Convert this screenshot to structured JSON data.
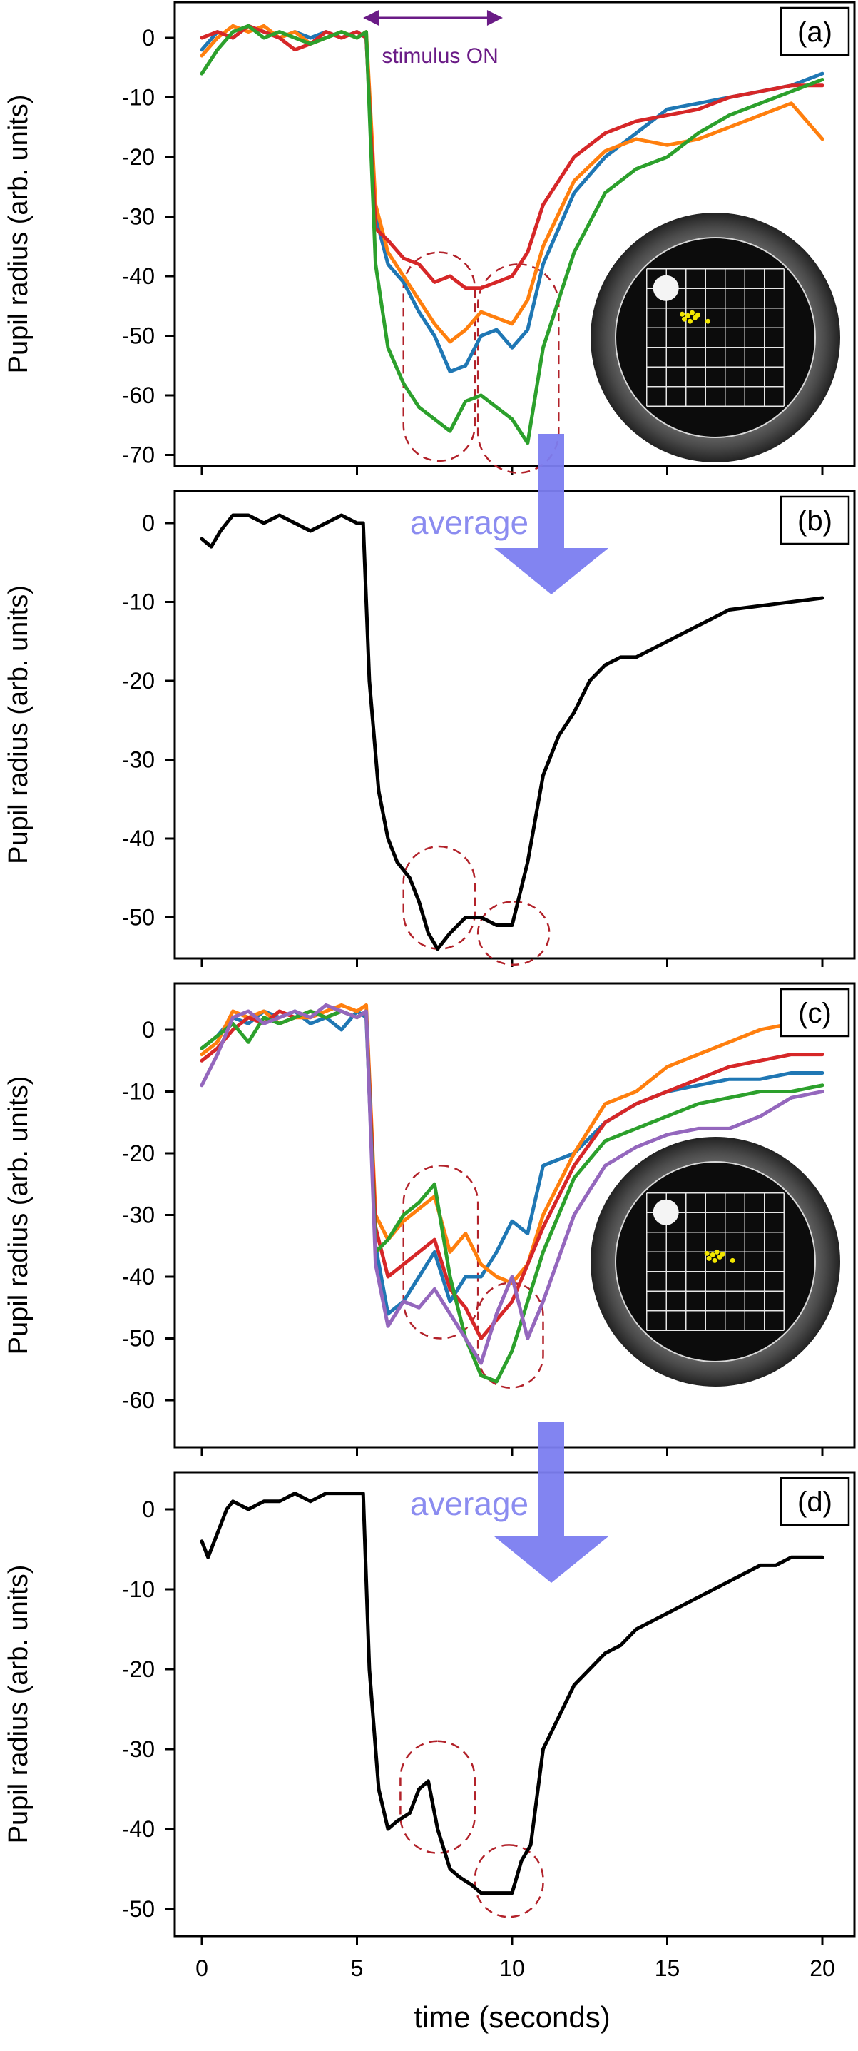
{
  "chart_data": [
    {
      "type": "line",
      "panel_label": "(a)",
      "ylabel": "Pupil radius (arb. units)",
      "xlim": [
        0,
        20
      ],
      "ylim": [
        -72,
        6
      ],
      "yticks": [
        0,
        -10,
        -20,
        -30,
        -40,
        -50,
        -60,
        -70
      ],
      "annotation": "stimulus ON",
      "stimulus_arrow_x": [
        5.2,
        9.7
      ],
      "inset": "fundus-image-with-grid",
      "highlight_groups": [
        {
          "x": [
            6.5,
            8.8
          ],
          "y": [
            -71,
            -36
          ]
        },
        {
          "x": [
            8.9,
            11.5
          ],
          "y": [
            -73,
            -38
          ]
        }
      ],
      "series": [
        {
          "color": "#1f77b4",
          "x": [
            0,
            0.5,
            1,
            1.5,
            2,
            2.5,
            3,
            3.5,
            4,
            4.5,
            5,
            5.3,
            5.6,
            6,
            6.5,
            7,
            7.5,
            8,
            8.5,
            9,
            9.5,
            10,
            10.5,
            11,
            12,
            13,
            14,
            15,
            16,
            17,
            18,
            19,
            20
          ],
          "y": [
            -2,
            1,
            0,
            2,
            1,
            0,
            1,
            0,
            1,
            0,
            1,
            0,
            -30,
            -38,
            -41,
            -46,
            -50,
            -56,
            -55,
            -50,
            -49,
            -52,
            -49,
            -38,
            -26,
            -20,
            -16,
            -12,
            -11,
            -10,
            -9,
            -8,
            -6
          ]
        },
        {
          "color": "#ff7f0e",
          "x": [
            0,
            0.5,
            1,
            1.5,
            2,
            2.5,
            3,
            3.5,
            4,
            4.5,
            5,
            5.3,
            5.6,
            6,
            6.5,
            7,
            7.5,
            8,
            8.5,
            9,
            9.5,
            10,
            10.5,
            11,
            12,
            13,
            14,
            15,
            16,
            17,
            18,
            19,
            20
          ],
          "y": [
            -3,
            0,
            2,
            1,
            2,
            0,
            1,
            -1,
            0,
            1,
            0,
            1,
            -28,
            -36,
            -40,
            -44,
            -48,
            -51,
            -49,
            -46,
            -47,
            -48,
            -44,
            -35,
            -24,
            -19,
            -17,
            -18,
            -17,
            -15,
            -13,
            -11,
            -17
          ]
        },
        {
          "color": "#d62728",
          "x": [
            0,
            0.5,
            1,
            1.5,
            2,
            2.5,
            3,
            3.5,
            4,
            4.5,
            5,
            5.3,
            5.6,
            6,
            6.5,
            7,
            7.5,
            8,
            8.5,
            9,
            9.5,
            10,
            10.5,
            11,
            12,
            13,
            14,
            15,
            16,
            17,
            18,
            19,
            20
          ],
          "y": [
            0,
            1,
            0,
            2,
            1,
            0,
            -2,
            -1,
            1,
            0,
            1,
            0,
            -32,
            -34,
            -37,
            -38,
            -41,
            -40,
            -42,
            -42,
            -41,
            -40,
            -36,
            -28,
            -20,
            -16,
            -14,
            -13,
            -12,
            -10,
            -9,
            -8,
            -8
          ]
        },
        {
          "color": "#2ca02c",
          "x": [
            0,
            0.5,
            1,
            1.5,
            2,
            2.5,
            3,
            3.5,
            4,
            4.5,
            5,
            5.3,
            5.6,
            6,
            6.5,
            7,
            7.5,
            8,
            8.5,
            9,
            9.5,
            10,
            10.5,
            11,
            12,
            13,
            14,
            15,
            16,
            17,
            18,
            19,
            20
          ],
          "y": [
            -6,
            -2,
            1,
            2,
            0,
            1,
            0,
            -1,
            0,
            1,
            0,
            1,
            -38,
            -52,
            -58,
            -62,
            -64,
            -66,
            -61,
            -60,
            -62,
            -64,
            -68,
            -52,
            -36,
            -26,
            -22,
            -20,
            -16,
            -13,
            -11,
            -9,
            -7
          ]
        }
      ]
    },
    {
      "type": "line",
      "panel_label": "(b)",
      "ylabel": "Pupil radius (arb. units)",
      "xlim": [
        0,
        20
      ],
      "ylim": [
        -56,
        4
      ],
      "yticks": [
        0,
        -10,
        -20,
        -30,
        -40,
        -50
      ],
      "annotation": "average",
      "highlight_groups": [
        {
          "x": [
            6.5,
            8.8
          ],
          "y": [
            -54,
            -41
          ]
        },
        {
          "x": [
            8.9,
            11.2
          ],
          "y": [
            -56,
            -48
          ]
        }
      ],
      "series": [
        {
          "color": "#000000",
          "x": [
            0,
            0.3,
            0.6,
            1,
            1.5,
            2,
            2.5,
            3,
            3.5,
            4,
            4.5,
            5,
            5.2,
            5.4,
            5.7,
            6,
            6.3,
            6.7,
            7,
            7.3,
            7.6,
            8,
            8.5,
            9,
            9.5,
            10,
            10.5,
            11,
            11.5,
            12,
            12.5,
            13,
            13.5,
            14,
            14.5,
            15,
            15.5,
            16,
            16.5,
            17,
            18,
            19,
            20
          ],
          "y": [
            -2,
            -3,
            -1,
            1,
            1,
            0,
            1,
            0,
            -1,
            0,
            1,
            0,
            0,
            -20,
            -34,
            -40,
            -43,
            -45,
            -48,
            -52,
            -54,
            -52,
            -50,
            -50,
            -51,
            -51,
            -43,
            -32,
            -27,
            -24,
            -20,
            -18,
            -17,
            -17,
            -16,
            -15,
            -14,
            -13,
            -12,
            -11,
            -10.5,
            -10,
            -9.5
          ]
        }
      ]
    },
    {
      "type": "line",
      "panel_label": "(c)",
      "ylabel": "Pupil radius (arb. units)",
      "xlim": [
        0,
        20
      ],
      "ylim": [
        -61,
        6
      ],
      "yticks": [
        0,
        -10,
        -20,
        -30,
        -40,
        -50,
        -60
      ],
      "inset": "fundus-image-with-grid",
      "highlight_groups": [
        {
          "x": [
            6.5,
            8.9
          ],
          "y": [
            -50,
            -22
          ]
        },
        {
          "x": [
            8.9,
            11.0
          ],
          "y": [
            -58,
            -41
          ]
        }
      ],
      "series": [
        {
          "color": "#1f77b4",
          "x": [
            0,
            0.5,
            1,
            1.5,
            2,
            2.5,
            3,
            3.5,
            4,
            4.5,
            5,
            5.3,
            5.6,
            6,
            6.5,
            7,
            7.5,
            8,
            8.5,
            9,
            9.5,
            10,
            10.5,
            11,
            12,
            13,
            14,
            15,
            16,
            17,
            18,
            19,
            20
          ],
          "y": [
            -3,
            -1,
            2,
            1,
            3,
            2,
            3,
            1,
            2,
            0,
            3,
            2,
            -35,
            -46,
            -44,
            -40,
            -36,
            -44,
            -40,
            -40,
            -36,
            -31,
            -33,
            -22,
            -20,
            -15,
            -12,
            -10,
            -9,
            -8,
            -8,
            -7,
            -7
          ]
        },
        {
          "color": "#ff7f0e",
          "x": [
            0,
            0.5,
            1,
            1.5,
            2,
            2.5,
            3,
            3.5,
            4,
            4.5,
            5,
            5.3,
            5.6,
            6,
            6.5,
            7,
            7.5,
            8,
            8.5,
            9,
            9.5,
            10,
            10.5,
            11,
            12,
            13,
            14,
            15,
            16,
            17,
            18,
            19,
            20
          ],
          "y": [
            -4,
            -2,
            3,
            2,
            3,
            1,
            2,
            2,
            3,
            4,
            3,
            4,
            -30,
            -34,
            -31,
            -29,
            -27,
            -36,
            -33,
            -38,
            -40,
            -41,
            -38,
            -30,
            -20,
            -12,
            -10,
            -6,
            -4,
            -2,
            0,
            1,
            2
          ]
        },
        {
          "color": "#d62728",
          "x": [
            0,
            0.5,
            1,
            1.5,
            2,
            2.5,
            3,
            3.5,
            4,
            4.5,
            5,
            5.3,
            5.6,
            6,
            6.5,
            7,
            7.5,
            8,
            8.5,
            9,
            9.5,
            10,
            10.5,
            11,
            12,
            13,
            14,
            15,
            16,
            17,
            18,
            19,
            20
          ],
          "y": [
            -5,
            -3,
            0,
            2,
            1,
            3,
            2,
            3,
            2,
            3,
            2,
            3,
            -32,
            -40,
            -38,
            -36,
            -34,
            -42,
            -45,
            -50,
            -47,
            -44,
            -38,
            -32,
            -22,
            -15,
            -12,
            -10,
            -8,
            -6,
            -5,
            -4,
            -4
          ]
        },
        {
          "color": "#2ca02c",
          "x": [
            0,
            0.5,
            1,
            1.5,
            2,
            2.5,
            3,
            3.5,
            4,
            4.5,
            5,
            5.3,
            5.6,
            6,
            6.5,
            7,
            7.5,
            8,
            8.5,
            9,
            9.5,
            10,
            10.5,
            11,
            12,
            13,
            14,
            15,
            16,
            17,
            18,
            19,
            20
          ],
          "y": [
            -3,
            -1,
            1,
            -2,
            2,
            1,
            2,
            3,
            2,
            3,
            2,
            3,
            -36,
            -34,
            -30,
            -28,
            -25,
            -40,
            -50,
            -56,
            -57,
            -52,
            -44,
            -36,
            -24,
            -18,
            -16,
            -14,
            -12,
            -11,
            -10,
            -10,
            -9
          ]
        },
        {
          "color": "#9467bd",
          "x": [
            0,
            0.5,
            1,
            1.5,
            2,
            2.5,
            3,
            3.5,
            4,
            4.5,
            5,
            5.3,
            5.6,
            6,
            6.5,
            7,
            7.5,
            8,
            8.5,
            9,
            9.5,
            10,
            10.5,
            11,
            12,
            13,
            14,
            15,
            16,
            17,
            18,
            19,
            20
          ],
          "y": [
            -9,
            -4,
            2,
            3,
            1,
            2,
            3,
            2,
            4,
            3,
            2,
            3,
            -38,
            -48,
            -44,
            -45,
            -42,
            -46,
            -50,
            -54,
            -46,
            -40,
            -50,
            -44,
            -30,
            -22,
            -19,
            -17,
            -16,
            -16,
            -14,
            -11,
            -10
          ]
        }
      ]
    },
    {
      "type": "line",
      "panel_label": "(d)",
      "ylabel": "Pupil radius (arb. units)",
      "xlabel": "time (seconds)",
      "xlim": [
        0,
        20
      ],
      "ylim": [
        -51,
        4
      ],
      "xticks": [
        0,
        5,
        10,
        15,
        20
      ],
      "yticks": [
        0,
        -10,
        -20,
        -30,
        -40,
        -50
      ],
      "annotation": "average",
      "highlight_groups": [
        {
          "x": [
            6.4,
            8.8
          ],
          "y": [
            -43,
            -29
          ]
        },
        {
          "x": [
            8.8,
            11.0
          ],
          "y": [
            -51,
            -42
          ]
        }
      ],
      "series": [
        {
          "color": "#000000",
          "x": [
            0,
            0.2,
            0.5,
            0.8,
            1,
            1.5,
            2,
            2.5,
            3,
            3.5,
            4,
            4.5,
            5,
            5.2,
            5.4,
            5.7,
            6,
            6.3,
            6.7,
            7,
            7.3,
            7.6,
            8,
            8.3,
            8.7,
            9,
            9.5,
            10,
            10.3,
            10.6,
            11,
            11.5,
            12,
            12.5,
            13,
            13.5,
            14,
            14.5,
            15,
            15.5,
            16,
            16.5,
            17,
            17.5,
            18,
            18.5,
            19,
            19.5,
            20
          ],
          "y": [
            -4,
            -6,
            -3,
            0,
            1,
            0,
            1,
            1,
            2,
            1,
            2,
            2,
            2,
            2,
            -20,
            -35,
            -40,
            -39,
            -38,
            -35,
            -34,
            -40,
            -45,
            -46,
            -47,
            -48,
            -48,
            -48,
            -44,
            -42,
            -30,
            -26,
            -22,
            -20,
            -18,
            -17,
            -15,
            -14,
            -13,
            -12,
            -11,
            -10,
            -9,
            -8,
            -7,
            -7,
            -6,
            -6,
            -6
          ]
        }
      ]
    }
  ]
}
